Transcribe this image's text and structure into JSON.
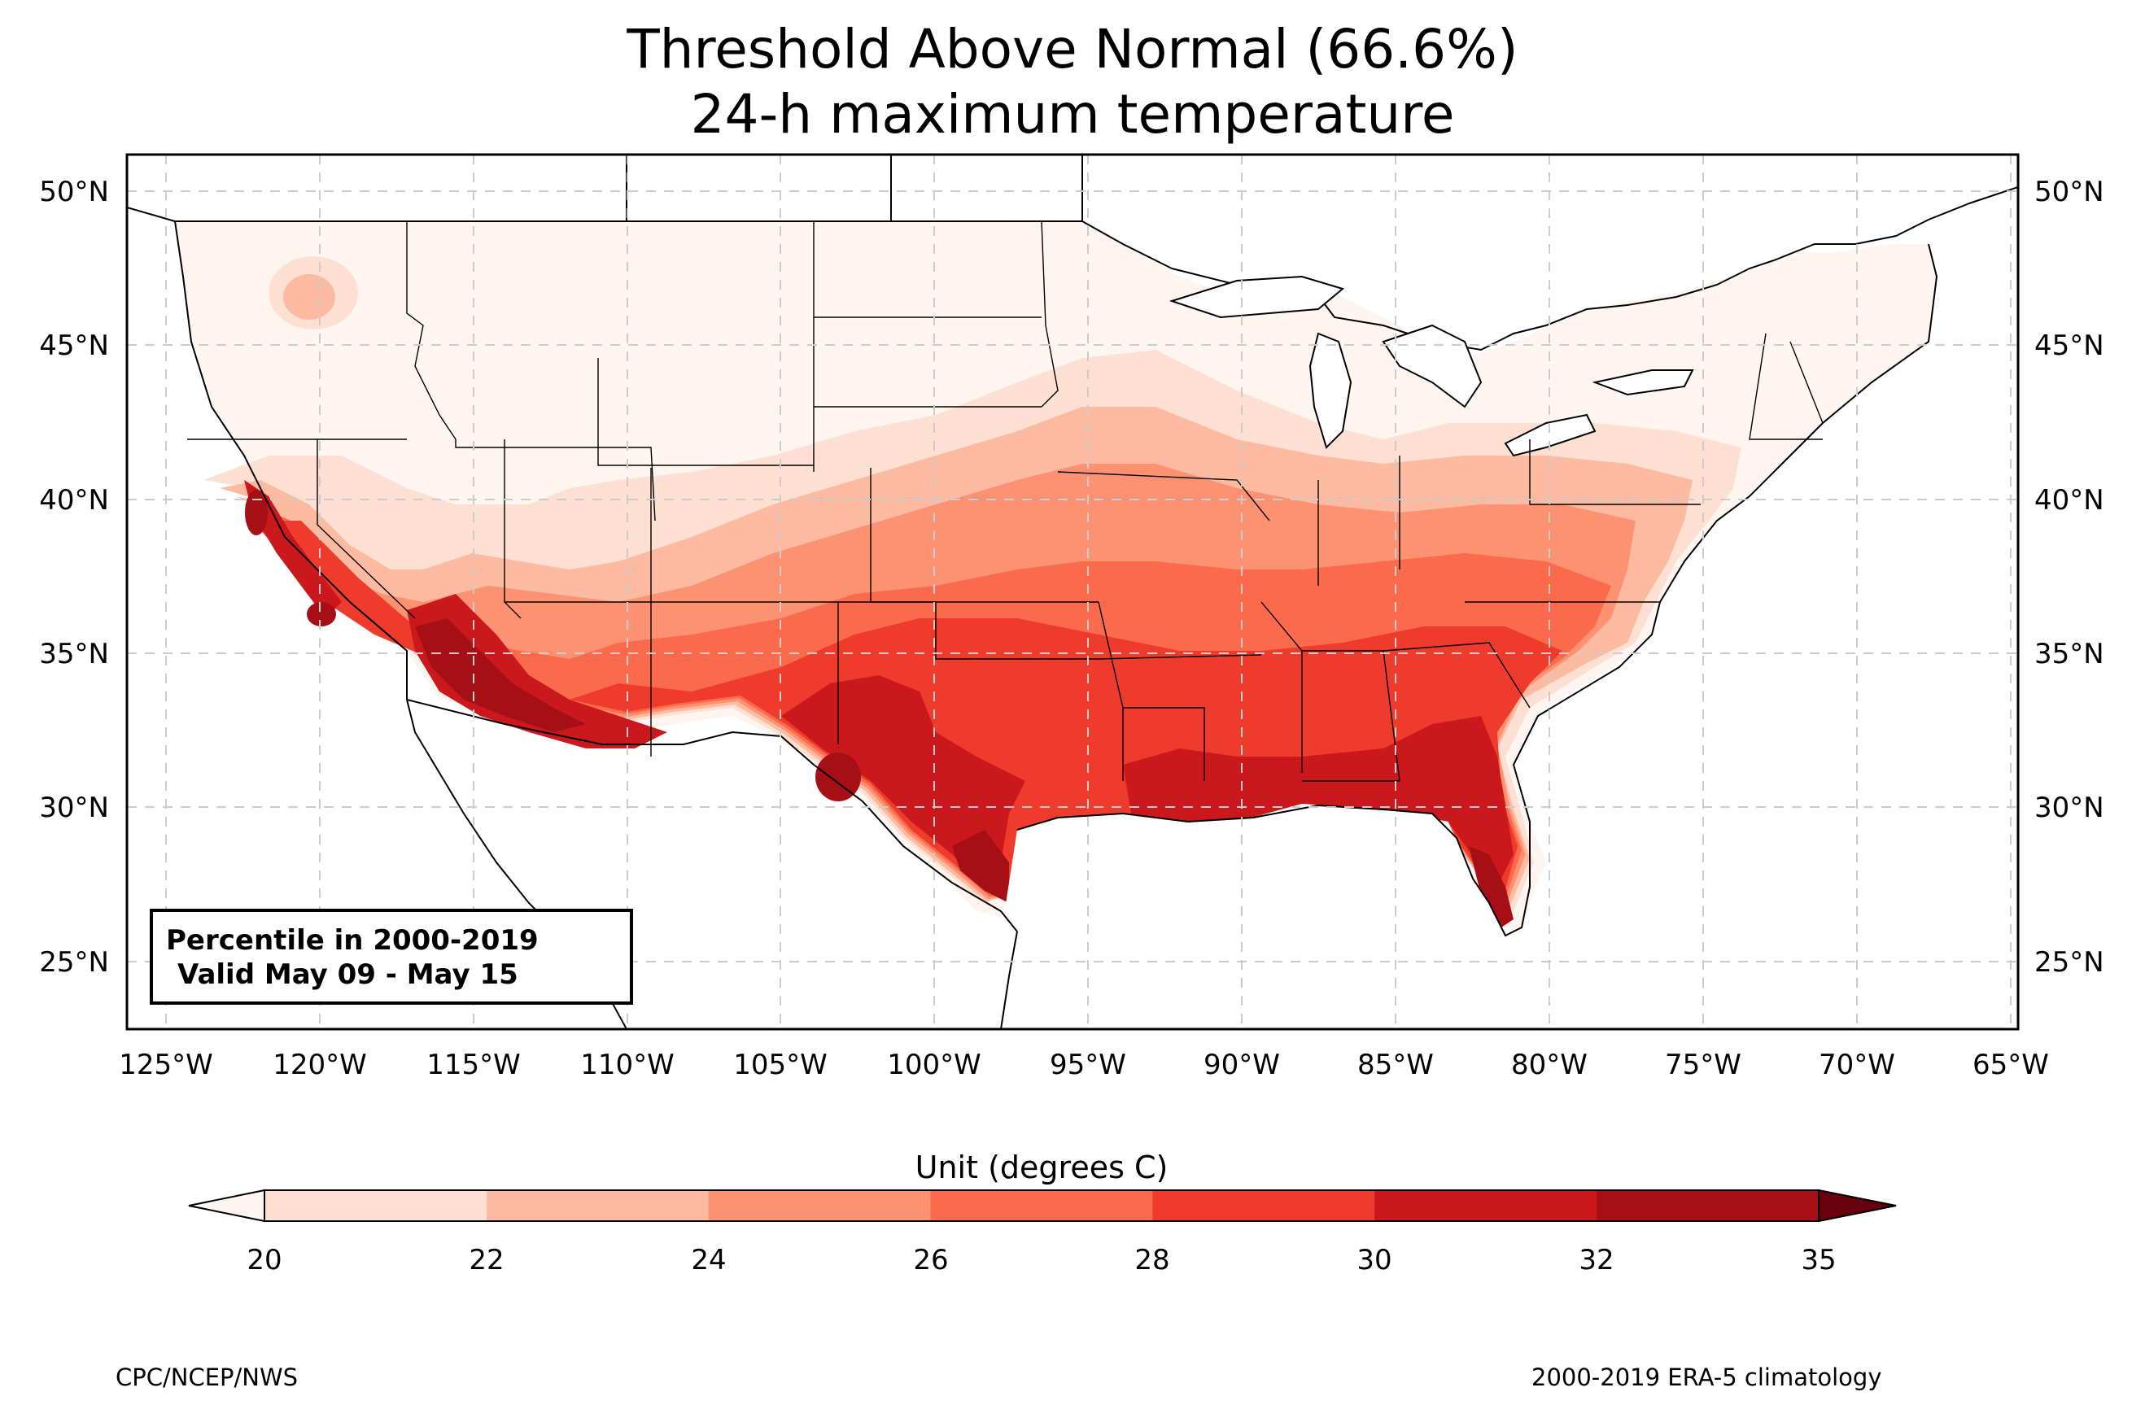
{
  "title_line1": "Threshold Above Normal (66.6%)",
  "title_line2": "24-h maximum temperature",
  "lat_labels": [
    "50°N",
    "45°N",
    "40°N",
    "35°N",
    "30°N",
    "25°N"
  ],
  "lon_labels": [
    "125°W",
    "120°W",
    "115°W",
    "110°W",
    "105°W",
    "100°W",
    "95°W",
    "90°W",
    "85°W",
    "80°W",
    "75°W",
    "70°W",
    "65°W"
  ],
  "infobox": {
    "line1": "Percentile in 2000-2019",
    "line2": "Valid May 09 - May 15"
  },
  "colorbar": {
    "title": "Unit (degrees C)",
    "ticks": [
      "20",
      "22",
      "24",
      "26",
      "28",
      "30",
      "32",
      "35"
    ],
    "colors": [
      "#fee0d2",
      "#fcbba1",
      "#fc9272",
      "#fb6a4a",
      "#ef3b2c",
      "#cb181d",
      "#a50f15"
    ],
    "under_color": "#fff5f0",
    "over_color": "#67000d"
  },
  "footer_left": "CPC/NCEP/NWS",
  "footer_right": "2000-2019 ERA-5 climatology"
}
